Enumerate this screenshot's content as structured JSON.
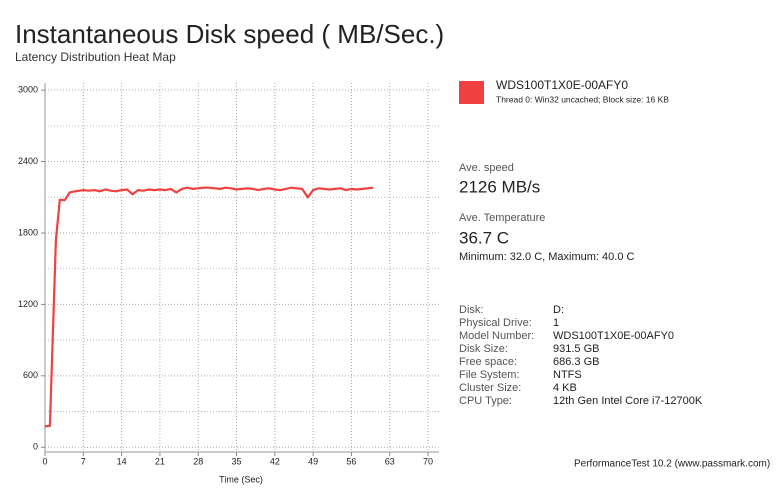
{
  "chart_data": {
    "type": "line",
    "title": "Instantaneous Disk speed ( MB/Sec.)",
    "subtitle": "Latency Distribution Heat Map",
    "xlabel": "Time (Sec)",
    "x": [
      0,
      0.9,
      2,
      2.7,
      3.6,
      4.5,
      5.5,
      7,
      8,
      9,
      10,
      11,
      12,
      13,
      14,
      15,
      16,
      17,
      18,
      19,
      20,
      21,
      22,
      23,
      24,
      25,
      26,
      27,
      28,
      29,
      30,
      31,
      32,
      33,
      34,
      35,
      36,
      37,
      38,
      39,
      40,
      41,
      42,
      43,
      44,
      45,
      46,
      47,
      48,
      49,
      50,
      51,
      52,
      53,
      54,
      55,
      56,
      57,
      58,
      59,
      60
    ],
    "series": [
      {
        "name": "WDS100T1X0E-00AFY0",
        "detail": "Thread 0: Win32 uncached; Block size: 16 KB",
        "color": "#f04040",
        "values": [
          175,
          180,
          1740,
          2080,
          2075,
          2140,
          2150,
          2160,
          2155,
          2160,
          2150,
          2165,
          2155,
          2150,
          2160,
          2165,
          2125,
          2160,
          2155,
          2165,
          2160,
          2165,
          2160,
          2170,
          2140,
          2170,
          2180,
          2170,
          2175,
          2180,
          2180,
          2175,
          2170,
          2180,
          2175,
          2165,
          2170,
          2175,
          2170,
          2160,
          2170,
          2175,
          2165,
          2160,
          2170,
          2180,
          2175,
          2170,
          2100,
          2160,
          2175,
          2170,
          2165,
          2170,
          2175,
          2160,
          2170,
          2165,
          2170,
          2175,
          2180
        ]
      }
    ],
    "xlim": [
      0,
      72
    ],
    "xticks": [
      0,
      7,
      14,
      21,
      28,
      35,
      42,
      49,
      56,
      63,
      70
    ],
    "ylim": [
      -40,
      3060
    ],
    "yticks": [
      0,
      600,
      1200,
      1800,
      2400,
      3000
    ],
    "yminor_ticks": [
      300,
      900,
      1500,
      2100,
      2700
    ],
    "grid": true
  },
  "panel": {
    "ave_speed_label": "Ave. speed",
    "ave_speed": "2126 MB/s",
    "temp_label": "Ave. Temperature",
    "temp": "36.7 C",
    "temp_range": "Minimum: 32.0 C, Maximum: 40.0 C",
    "info": [
      [
        "Disk:",
        "D:"
      ],
      [
        "Physical Drive:",
        "1"
      ],
      [
        "Model Number:",
        "WDS100T1X0E-00AFY0"
      ],
      [
        "Disk Size:",
        "931.5 GB"
      ],
      [
        "Free space:",
        "686.3 GB"
      ],
      [
        "File System:",
        "NTFS"
      ],
      [
        "Cluster Size:",
        "4 KB"
      ],
      [
        "CPU Type:",
        "12th Gen Intel Core i7-12700K"
      ]
    ],
    "footer": "PerformanceTest 10.2 (www.passmark.com)"
  }
}
